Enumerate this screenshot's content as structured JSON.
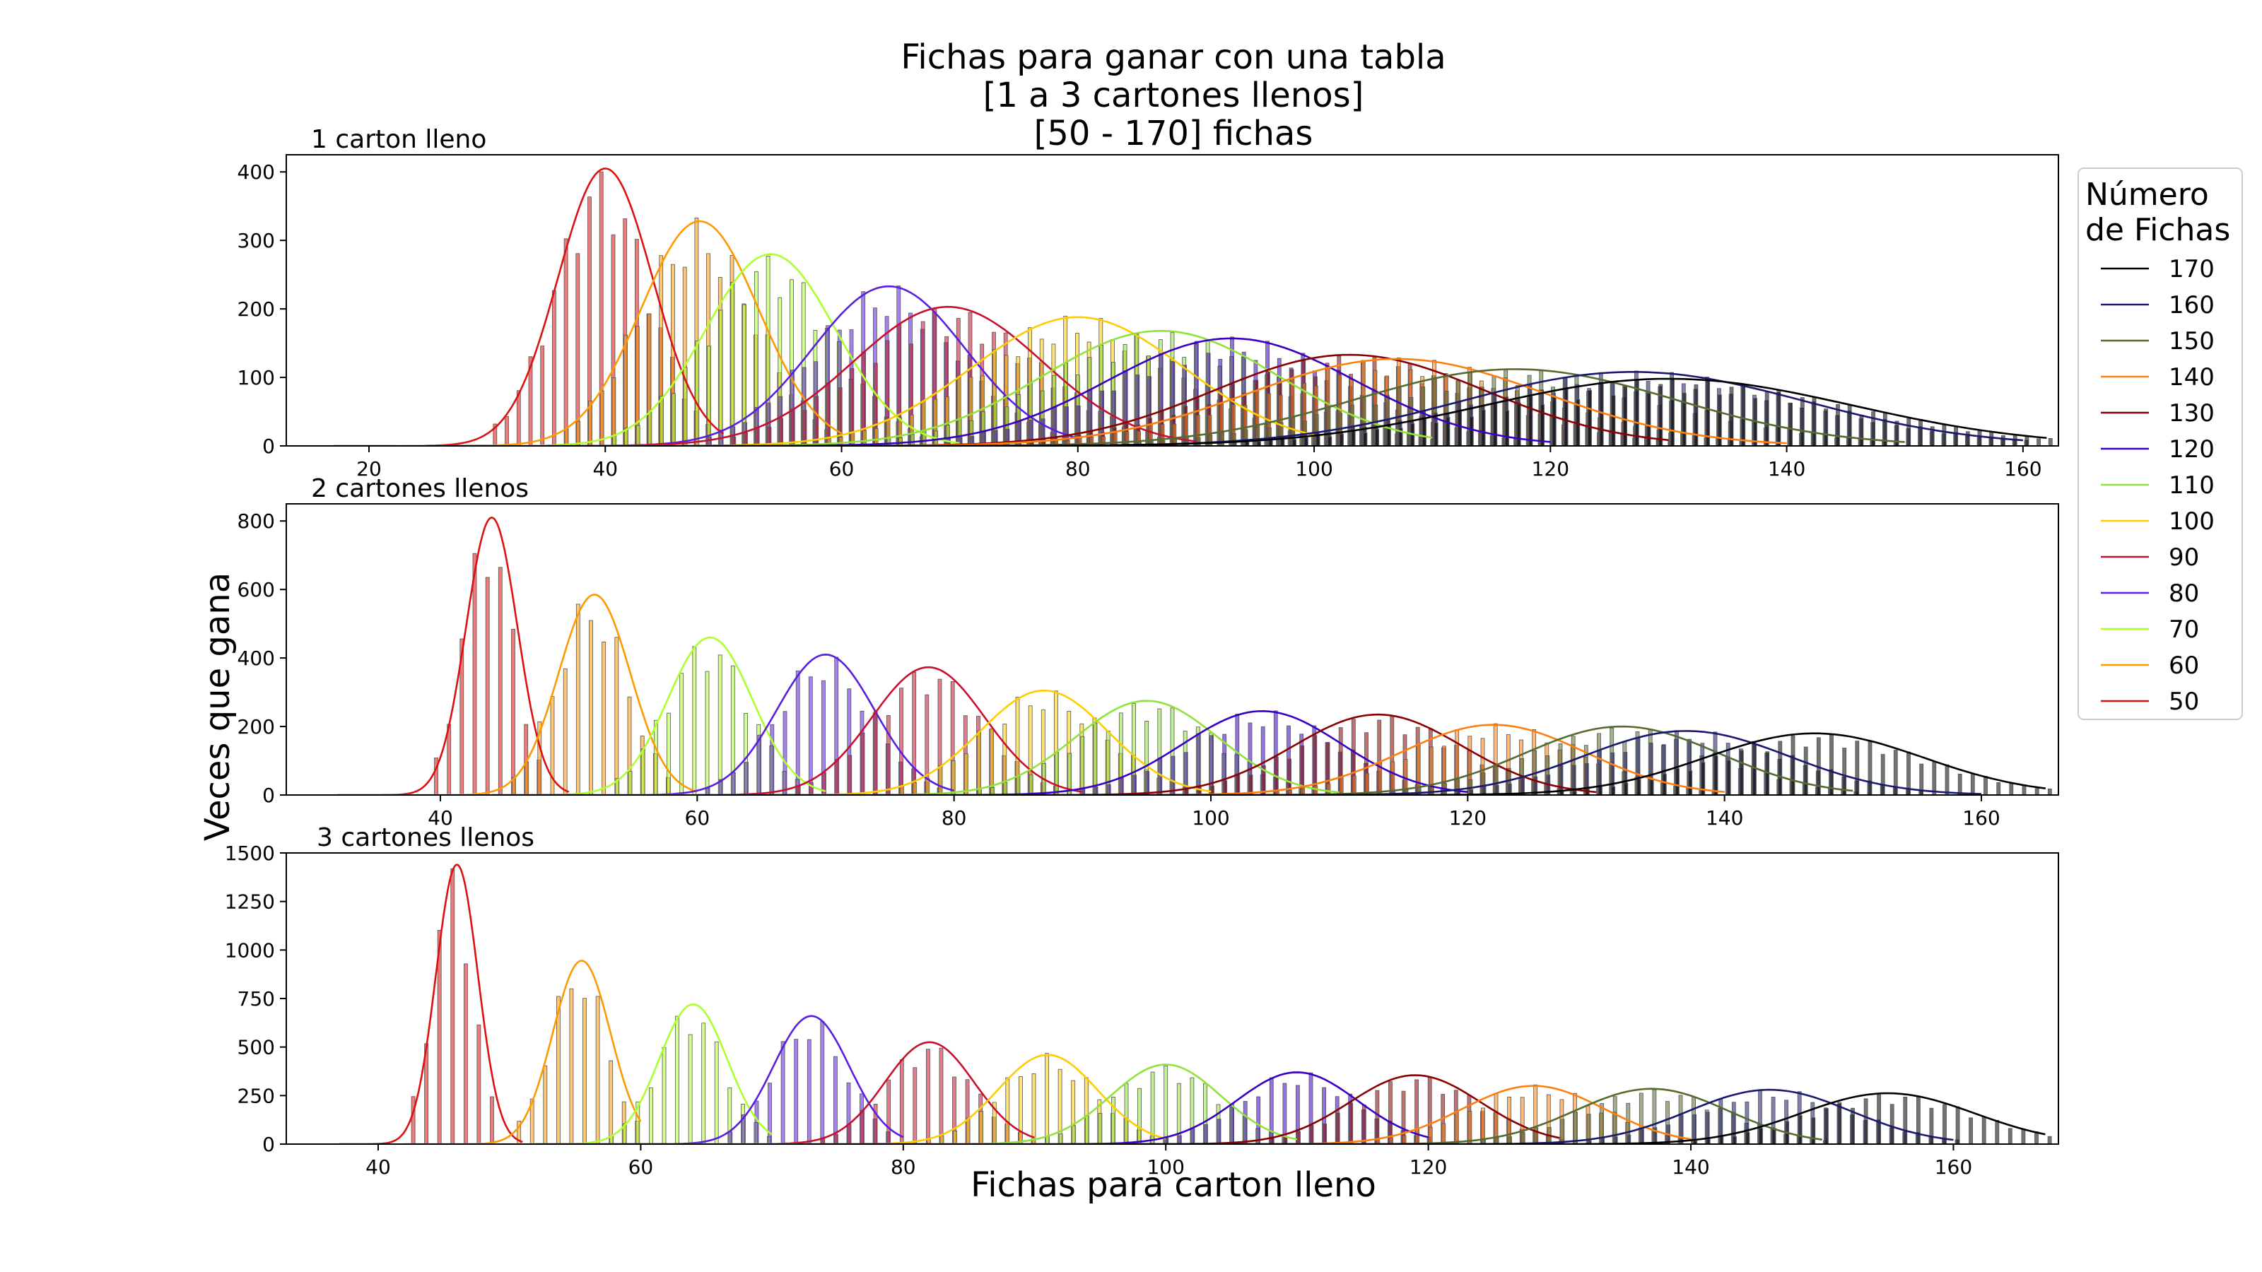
{
  "figure": {
    "title_lines": [
      "Fichas para ganar con una tabla",
      "[1 a 3 cartones llenos]",
      "[50 - 170] fichas"
    ],
    "xlabel": "Fichas para carton lleno",
    "ylabel": "Veces que gana"
  },
  "legend": {
    "title_lines": [
      "Número",
      "de Fichas"
    ],
    "entries": [
      {
        "label": "170",
        "color": "#000000"
      },
      {
        "label": "160",
        "color": "#191970"
      },
      {
        "label": "150",
        "color": "#556b2f"
      },
      {
        "label": "140",
        "color": "#ff7f0e"
      },
      {
        "label": "130",
        "color": "#8b0000"
      },
      {
        "label": "120",
        "color": "#3a00c4"
      },
      {
        "label": "110",
        "color": "#8fe33a"
      },
      {
        "label": "100",
        "color": "#ffcc00"
      },
      {
        "label": "90",
        "color": "#c8102e"
      },
      {
        "label": "80",
        "color": "#5a1ee0"
      },
      {
        "label": "70",
        "color": "#adff2f"
      },
      {
        "label": "60",
        "color": "#ff9900"
      },
      {
        "label": "50",
        "color": "#dd1111"
      }
    ]
  },
  "chart_data": [
    {
      "type": "line",
      "title": "1 carton lleno",
      "xlim": [
        13,
        163
      ],
      "ylim": [
        0,
        425
      ],
      "xticks": [
        20,
        40,
        60,
        80,
        100,
        120,
        140,
        160
      ],
      "yticks": [
        0,
        100,
        200,
        300,
        400
      ],
      "xtick_labels": [
        "20",
        "40",
        "60",
        "80",
        "100",
        "120",
        "140",
        "160"
      ],
      "ytick_labels": [
        "0",
        "100",
        "200",
        "300",
        "400"
      ],
      "series": [
        {
          "name": "50",
          "color": "#dd1111",
          "peak_x": 40,
          "peak_y": 405,
          "sd": 4.0,
          "xmin": 17,
          "xmax": 50
        },
        {
          "name": "60",
          "color": "#ff9900",
          "peak_x": 48,
          "peak_y": 328,
          "sd": 5.0,
          "xmin": 20,
          "xmax": 60
        },
        {
          "name": "70",
          "color": "#adff2f",
          "peak_x": 54,
          "peak_y": 280,
          "sd": 5.5,
          "xmin": 22,
          "xmax": 70
        },
        {
          "name": "80",
          "color": "#5a1ee0",
          "peak_x": 64,
          "peak_y": 233,
          "sd": 6.5,
          "xmin": 25,
          "xmax": 80
        },
        {
          "name": "90",
          "color": "#c8102e",
          "peak_x": 69,
          "peak_y": 203,
          "sd": 8.0,
          "xmin": 27,
          "xmax": 90
        },
        {
          "name": "100",
          "color": "#ffcc00",
          "peak_x": 80,
          "peak_y": 188,
          "sd": 9.0,
          "xmin": 30,
          "xmax": 100
        },
        {
          "name": "110",
          "color": "#8fe33a",
          "peak_x": 87,
          "peak_y": 168,
          "sd": 10.0,
          "xmin": 32,
          "xmax": 110
        },
        {
          "name": "120",
          "color": "#3a00c4",
          "peak_x": 93,
          "peak_y": 157,
          "sd": 10.5,
          "xmin": 35,
          "xmax": 120
        },
        {
          "name": "130",
          "color": "#8b0000",
          "peak_x": 103,
          "peak_y": 133,
          "sd": 11.5,
          "xmin": 38,
          "xmax": 130
        },
        {
          "name": "140",
          "color": "#ff7f0e",
          "peak_x": 107,
          "peak_y": 127,
          "sd": 12.5,
          "xmin": 40,
          "xmax": 140
        },
        {
          "name": "150",
          "color": "#556b2f",
          "peak_x": 117,
          "peak_y": 112,
          "sd": 13.5,
          "xmin": 43,
          "xmax": 150
        },
        {
          "name": "160",
          "color": "#191970",
          "peak_x": 127,
          "peak_y": 108,
          "sd": 14.5,
          "xmin": 46,
          "xmax": 160
        },
        {
          "name": "170",
          "color": "#000000",
          "peak_x": 130,
          "peak_y": 98,
          "sd": 15.5,
          "xmin": 49,
          "xmax": 162
        }
      ]
    },
    {
      "type": "line",
      "title": "2 cartones llenos",
      "xlim": [
        28,
        166
      ],
      "ylim": [
        0,
        850
      ],
      "xticks": [
        40,
        60,
        80,
        100,
        120,
        140,
        160
      ],
      "yticks": [
        0,
        200,
        400,
        600,
        800
      ],
      "xtick_labels": [
        "40",
        "60",
        "80",
        "100",
        "120",
        "140",
        "160"
      ],
      "ytick_labels": [
        "0",
        "200",
        "400",
        "600",
        "800"
      ],
      "series": [
        {
          "name": "50",
          "color": "#dd1111",
          "peak_x": 44,
          "peak_y": 810,
          "sd": 2.0,
          "xmin": 32,
          "xmax": 50
        },
        {
          "name": "60",
          "color": "#ff9900",
          "peak_x": 52,
          "peak_y": 585,
          "sd": 2.8,
          "xmin": 36,
          "xmax": 60
        },
        {
          "name": "70",
          "color": "#adff2f",
          "peak_x": 61,
          "peak_y": 460,
          "sd": 3.3,
          "xmin": 40,
          "xmax": 70
        },
        {
          "name": "80",
          "color": "#5a1ee0",
          "peak_x": 70,
          "peak_y": 410,
          "sd": 3.8,
          "xmin": 44,
          "xmax": 80
        },
        {
          "name": "90",
          "color": "#c8102e",
          "peak_x": 78,
          "peak_y": 373,
          "sd": 4.4,
          "xmin": 48,
          "xmax": 90
        },
        {
          "name": "100",
          "color": "#ffcc00",
          "peak_x": 87,
          "peak_y": 305,
          "sd": 5.0,
          "xmin": 52,
          "xmax": 100
        },
        {
          "name": "110",
          "color": "#8fe33a",
          "peak_x": 95,
          "peak_y": 275,
          "sd": 5.6,
          "xmin": 56,
          "xmax": 110
        },
        {
          "name": "120",
          "color": "#3a00c4",
          "peak_x": 104,
          "peak_y": 245,
          "sd": 6.2,
          "xmin": 60,
          "xmax": 120
        },
        {
          "name": "130",
          "color": "#8b0000",
          "peak_x": 113,
          "peak_y": 235,
          "sd": 6.6,
          "xmin": 64,
          "xmax": 130
        },
        {
          "name": "140",
          "color": "#ff7f0e",
          "peak_x": 122,
          "peak_y": 205,
          "sd": 7.2,
          "xmin": 68,
          "xmax": 140
        },
        {
          "name": "150",
          "color": "#556b2f",
          "peak_x": 132,
          "peak_y": 200,
          "sd": 7.6,
          "xmin": 72,
          "xmax": 150
        },
        {
          "name": "160",
          "color": "#191970",
          "peak_x": 137,
          "peak_y": 187,
          "sd": 8.0,
          "xmin": 76,
          "xmax": 160
        },
        {
          "name": "170",
          "color": "#000000",
          "peak_x": 147,
          "peak_y": 180,
          "sd": 8.5,
          "xmin": 80,
          "xmax": 165
        }
      ]
    },
    {
      "type": "line",
      "title": "3 cartones llenos",
      "xlim": [
        33,
        168
      ],
      "ylim": [
        0,
        1500
      ],
      "xticks": [
        40,
        60,
        80,
        100,
        120,
        140,
        160
      ],
      "yticks": [
        0,
        250,
        500,
        750,
        1000,
        1250,
        1500
      ],
      "xtick_labels": [
        "40",
        "60",
        "80",
        "100",
        "120",
        "140",
        "160"
      ],
      "ytick_labels": [
        "0",
        "250",
        "500",
        "750",
        "1000",
        "1250",
        "1500"
      ],
      "series": [
        {
          "name": "50",
          "color": "#dd1111",
          "peak_x": 46,
          "peak_y": 1440,
          "sd": 1.6,
          "xmin": 37,
          "xmax": 51
        },
        {
          "name": "60",
          "color": "#ff9900",
          "peak_x": 55.5,
          "peak_y": 945,
          "sd": 2.2,
          "xmin": 42,
          "xmax": 60
        },
        {
          "name": "70",
          "color": "#adff2f",
          "peak_x": 64,
          "peak_y": 720,
          "sd": 2.6,
          "xmin": 47,
          "xmax": 70
        },
        {
          "name": "80",
          "color": "#5a1ee0",
          "peak_x": 73,
          "peak_y": 660,
          "sd": 2.9,
          "xmin": 52,
          "xmax": 80
        },
        {
          "name": "90",
          "color": "#c8102e",
          "peak_x": 82,
          "peak_y": 525,
          "sd": 3.4,
          "xmin": 57,
          "xmax": 90
        },
        {
          "name": "100",
          "color": "#ffcc00",
          "peak_x": 91,
          "peak_y": 460,
          "sd": 3.8,
          "xmin": 62,
          "xmax": 100
        },
        {
          "name": "110",
          "color": "#8fe33a",
          "peak_x": 100,
          "peak_y": 410,
          "sd": 4.2,
          "xmin": 67,
          "xmax": 110
        },
        {
          "name": "120",
          "color": "#3a00c4",
          "peak_x": 110,
          "peak_y": 370,
          "sd": 4.6,
          "xmin": 72,
          "xmax": 120
        },
        {
          "name": "130",
          "color": "#8b0000",
          "peak_x": 119,
          "peak_y": 355,
          "sd": 5.0,
          "xmin": 77,
          "xmax": 130
        },
        {
          "name": "140",
          "color": "#ff7f0e",
          "peak_x": 128,
          "peak_y": 300,
          "sd": 5.4,
          "xmin": 82,
          "xmax": 140
        },
        {
          "name": "150",
          "color": "#556b2f",
          "peak_x": 137,
          "peak_y": 285,
          "sd": 5.8,
          "xmin": 87,
          "xmax": 150
        },
        {
          "name": "160",
          "color": "#191970",
          "peak_x": 146,
          "peak_y": 280,
          "sd": 6.2,
          "xmin": 92,
          "xmax": 160
        },
        {
          "name": "170",
          "color": "#000000",
          "peak_x": 155,
          "peak_y": 262,
          "sd": 6.6,
          "xmin": 97,
          "xmax": 167
        }
      ]
    }
  ]
}
